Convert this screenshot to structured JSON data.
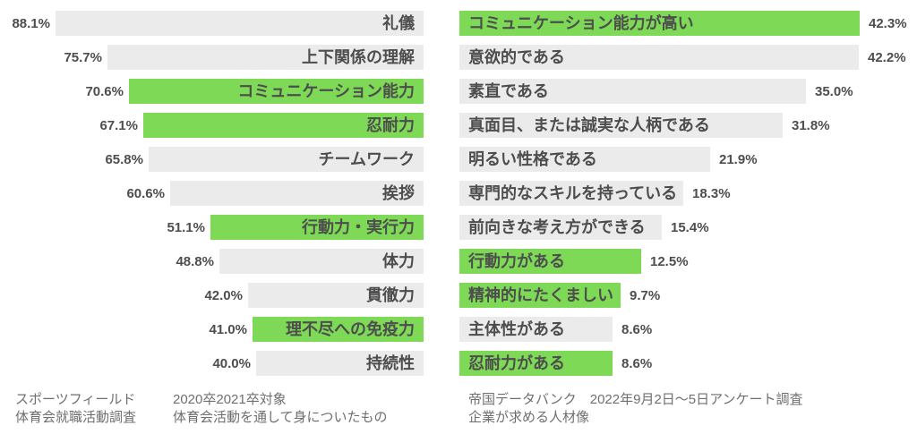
{
  "colors": {
    "background": "#ffffff",
    "highlight_green": "#7ed957",
    "bar_gray": "#ebebeb",
    "label_text": "#4d4d4d",
    "footer_text": "#6f6f6f"
  },
  "chart_data": [
    {
      "type": "bar",
      "orientation": "horizontal",
      "bar_alignment": "right",
      "value_suffix": "%",
      "xlim": [
        0,
        100
      ],
      "grid": false,
      "legend": false,
      "categories": [
        "礼儀",
        "上下関係の理解",
        "コミュニケーション能力",
        "忍耐力",
        "チームワーク",
        "挨拶",
        "行動力・実行力",
        "体力",
        "貫徹力",
        "理不尽への免疫力",
        "持続性"
      ],
      "values": [
        88.1,
        75.7,
        70.6,
        67.1,
        65.8,
        60.6,
        51.1,
        48.8,
        42.0,
        41.0,
        40.0
      ],
      "display_values": [
        "88.1%",
        "75.7%",
        "70.6%",
        "67.1%",
        "65.8%",
        "60.6%",
        "51.1%",
        "48.8%",
        "42.0%",
        "41.0%",
        "40.0%"
      ],
      "highlighted": [
        false,
        false,
        true,
        true,
        false,
        false,
        true,
        false,
        false,
        true,
        false
      ],
      "source": "スポーツフィールド 体育会就職活動調査",
      "note": "2020卒2021卒対象 体育会活動を通して身についたもの"
    },
    {
      "type": "bar",
      "orientation": "horizontal",
      "bar_alignment": "left",
      "value_suffix": "%",
      "xlim": [
        0,
        50
      ],
      "grid": false,
      "legend": false,
      "categories": [
        "コミュニケーション能力が高い",
        "意欲的である",
        "素直である",
        "真面目、または誠実な人柄である",
        "明るい性格である",
        "専門的なスキルを持っている",
        "前向きな考え方ができる",
        "行動力がある",
        "精神的にたくましい",
        "主体性がある",
        "忍耐力がある"
      ],
      "values": [
        42.3,
        42.2,
        35.0,
        31.8,
        21.9,
        18.3,
        15.4,
        12.5,
        9.7,
        8.6,
        8.6
      ],
      "display_values": [
        "42.3%",
        "42.2%",
        "35.0%",
        "31.8%",
        "21.9%",
        "18.3%",
        "15.4%",
        "12.5%",
        "9.7%",
        "8.6%",
        "8.6%"
      ],
      "highlighted": [
        true,
        false,
        false,
        false,
        false,
        false,
        false,
        true,
        true,
        false,
        true
      ],
      "source": "帝国データバンク　2022年9月2日～5日アンケート調査",
      "note": "企業が求める人材像"
    }
  ],
  "footers": {
    "left_source": {
      "line1": "スポーツフィールド",
      "line2": "体育会就職活動調査"
    },
    "left_note": {
      "line1": "2020卒2021卒対象",
      "line2": "体育会活動を通して身についたもの"
    },
    "right_source": {
      "line1": "帝国データバンク　2022年9月2日～5日アンケート調査",
      "line2": "企業が求める人材像"
    }
  }
}
